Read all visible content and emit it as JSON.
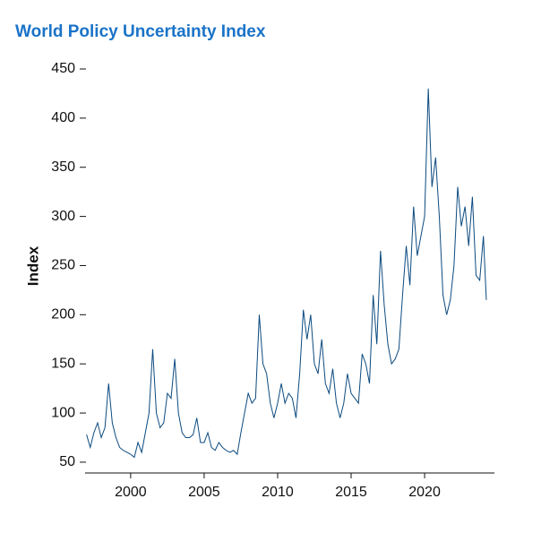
{
  "chart_data": {
    "type": "line",
    "title": "World Policy Uncertainty Index",
    "ylabel": "Index",
    "xlim": [
      1996.9,
      2024.75
    ],
    "ylim": [
      39,
      450
    ],
    "xticks": [
      2000,
      2005,
      2010,
      2015,
      2020
    ],
    "yticks": [
      50,
      100,
      150,
      200,
      250,
      300,
      350,
      400,
      450
    ],
    "x": [
      1997,
      1997.25,
      1997.5,
      1997.75,
      1998,
      1998.25,
      1998.5,
      1998.75,
      1999,
      1999.25,
      1999.5,
      1999.75,
      2000,
      2000.25,
      2000.5,
      2000.75,
      2001,
      2001.25,
      2001.5,
      2001.75,
      2002,
      2002.25,
      2002.5,
      2002.75,
      2003,
      2003.25,
      2003.5,
      2003.75,
      2004,
      2004.25,
      2004.5,
      2004.75,
      2005,
      2005.25,
      2005.5,
      2005.75,
      2006,
      2006.25,
      2006.5,
      2006.75,
      2007,
      2007.25,
      2007.5,
      2007.75,
      2008,
      2008.25,
      2008.5,
      2008.75,
      2009,
      2009.25,
      2009.5,
      2009.75,
      2010,
      2010.25,
      2010.5,
      2010.75,
      2011,
      2011.25,
      2011.5,
      2011.75,
      2012,
      2012.25,
      2012.5,
      2012.75,
      2013,
      2013.25,
      2013.5,
      2013.75,
      2014,
      2014.25,
      2014.5,
      2014.75,
      2015,
      2015.25,
      2015.5,
      2015.75,
      2016,
      2016.25,
      2016.5,
      2016.75,
      2017,
      2017.25,
      2017.5,
      2017.75,
      2018,
      2018.25,
      2018.5,
      2018.75,
      2019,
      2019.25,
      2019.5,
      2019.75,
      2020,
      2020.25,
      2020.5,
      2020.75,
      2021,
      2021.25,
      2021.5,
      2021.75,
      2022,
      2022.25,
      2022.5,
      2022.75,
      2023,
      2023.25,
      2023.5,
      2023.75,
      2024,
      2024.2
    ],
    "series": [
      {
        "name": "World Policy Uncertainty Index",
        "color": "#0b4a7f",
        "values": [
          78,
          65,
          80,
          90,
          75,
          85,
          130,
          90,
          75,
          65,
          62,
          60,
          58,
          55,
          70,
          60,
          80,
          100,
          165,
          100,
          85,
          90,
          120,
          115,
          155,
          100,
          80,
          75,
          75,
          78,
          95,
          70,
          70,
          80,
          65,
          62,
          70,
          65,
          62,
          60,
          62,
          58,
          80,
          100,
          120,
          110,
          115,
          200,
          150,
          140,
          110,
          95,
          110,
          130,
          110,
          120,
          115,
          95,
          140,
          205,
          175,
          200,
          150,
          140,
          175,
          130,
          120,
          145,
          110,
          95,
          110,
          140,
          120,
          115,
          110,
          160,
          150,
          130,
          220,
          170,
          265,
          210,
          170,
          150,
          155,
          165,
          220,
          270,
          230,
          310,
          260,
          280,
          300,
          430,
          330,
          360,
          300,
          220,
          200,
          215,
          250,
          330,
          290,
          310,
          270,
          320,
          240,
          235,
          280,
          215
        ]
      }
    ]
  }
}
